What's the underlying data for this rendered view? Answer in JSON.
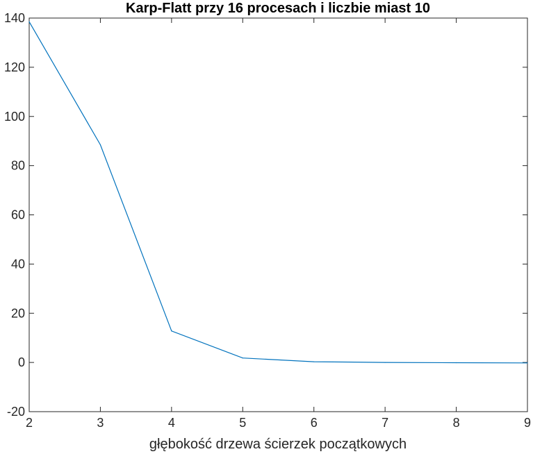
{
  "chart_data": {
    "type": "line",
    "title": "Karp-Flatt przy 16 procesach i liczbie miast 10",
    "xlabel": "głębokość drzewa ścierzek początkowych",
    "ylabel": "",
    "xlim": [
      2,
      9
    ],
    "ylim": [
      -20,
      140
    ],
    "x_ticks": [
      "2",
      "3",
      "4",
      "5",
      "6",
      "7",
      "8",
      "9"
    ],
    "y_ticks": [
      "-20",
      "0",
      "20",
      "40",
      "60",
      "80",
      "100",
      "120",
      "140"
    ],
    "grid": false,
    "series": [
      {
        "x": [
          2,
          3,
          4,
          5,
          6,
          7,
          8,
          9
        ],
        "values": [
          138.5,
          88.5,
          12.8,
          1.8,
          0.3,
          0.0,
          -0.1,
          -0.2
        ],
        "color": "#0072BD"
      }
    ]
  }
}
